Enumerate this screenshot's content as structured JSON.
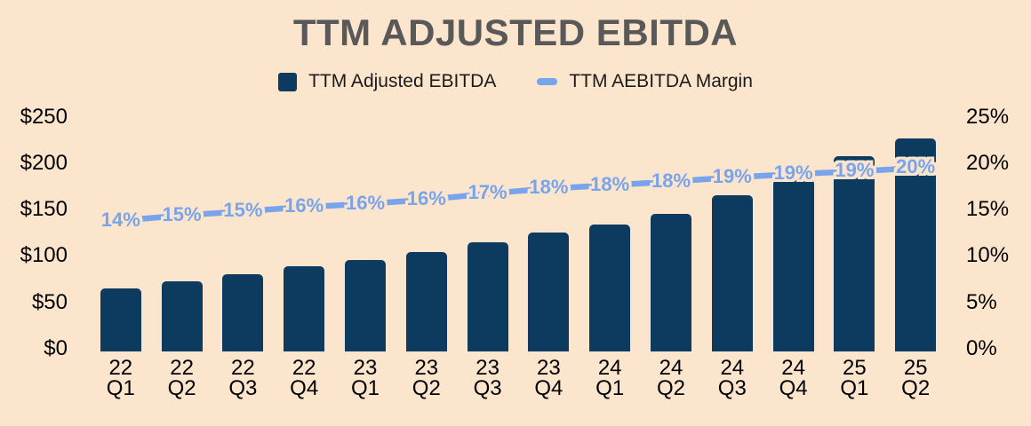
{
  "title": "TTM ADJUSTED EBITDA",
  "colors": {
    "background": "#fce5cd",
    "bar": "#0d3a5f",
    "line": "#78a4ec",
    "title_text": "#595959",
    "axis_text": "#000000",
    "legend_text": "#1b1b1b"
  },
  "legend": {
    "items": [
      {
        "label": "TTM Adjusted EBITDA",
        "marker": "square"
      },
      {
        "label": "TTM AEBITDA Margin",
        "marker": "dash"
      }
    ]
  },
  "chart_data": {
    "type": "bar",
    "subtype": "combo-bar-line",
    "title": "TTM ADJUSTED EBITDA",
    "grid": false,
    "legend_position": "top",
    "categories": [
      "22 Q1",
      "22 Q2",
      "22 Q3",
      "22 Q4",
      "23 Q1",
      "23 Q2",
      "23 Q3",
      "23 Q4",
      "24 Q1",
      "24 Q2",
      "24 Q3",
      "24 Q4",
      "25 Q1",
      "25 Q2"
    ],
    "series": [
      {
        "name": "TTM Adjusted EBITDA",
        "type": "bar",
        "axis": "left",
        "values": [
          68,
          76,
          83,
          92,
          98,
          107,
          118,
          128,
          137,
          148,
          168,
          185,
          210,
          229
        ]
      },
      {
        "name": "TTM AEBITDA Margin",
        "type": "line",
        "axis": "right",
        "point_labels": [
          "14%",
          "15%",
          "15%",
          "16%",
          "16%",
          "16%",
          "17%",
          "18%",
          "18%",
          "18%",
          "19%",
          "19%",
          "19%",
          "20%"
        ],
        "values_pct": [
          14.1,
          14.65,
          15.1,
          15.55,
          15.9,
          16.35,
          17.0,
          17.55,
          17.9,
          18.3,
          18.75,
          19.1,
          19.4,
          19.75
        ]
      }
    ],
    "left_axis": {
      "ticks": [
        {
          "label": "$250",
          "value": 250
        },
        {
          "label": "$200",
          "value": 200
        },
        {
          "label": "$150",
          "value": 150
        },
        {
          "label": "$100",
          "value": 100
        },
        {
          "label": "$50",
          "value": 50
        },
        {
          "label": "$0",
          "value": 0
        }
      ],
      "range": [
        0,
        250
      ]
    },
    "right_axis": {
      "ticks": [
        {
          "label": "25%",
          "value": 25
        },
        {
          "label": "20%",
          "value": 20
        },
        {
          "label": "15%",
          "value": 15
        },
        {
          "label": "10%",
          "value": 10
        },
        {
          "label": "5%",
          "value": 5
        },
        {
          "label": "0%",
          "value": 0
        }
      ],
      "range": [
        0,
        25
      ]
    }
  }
}
